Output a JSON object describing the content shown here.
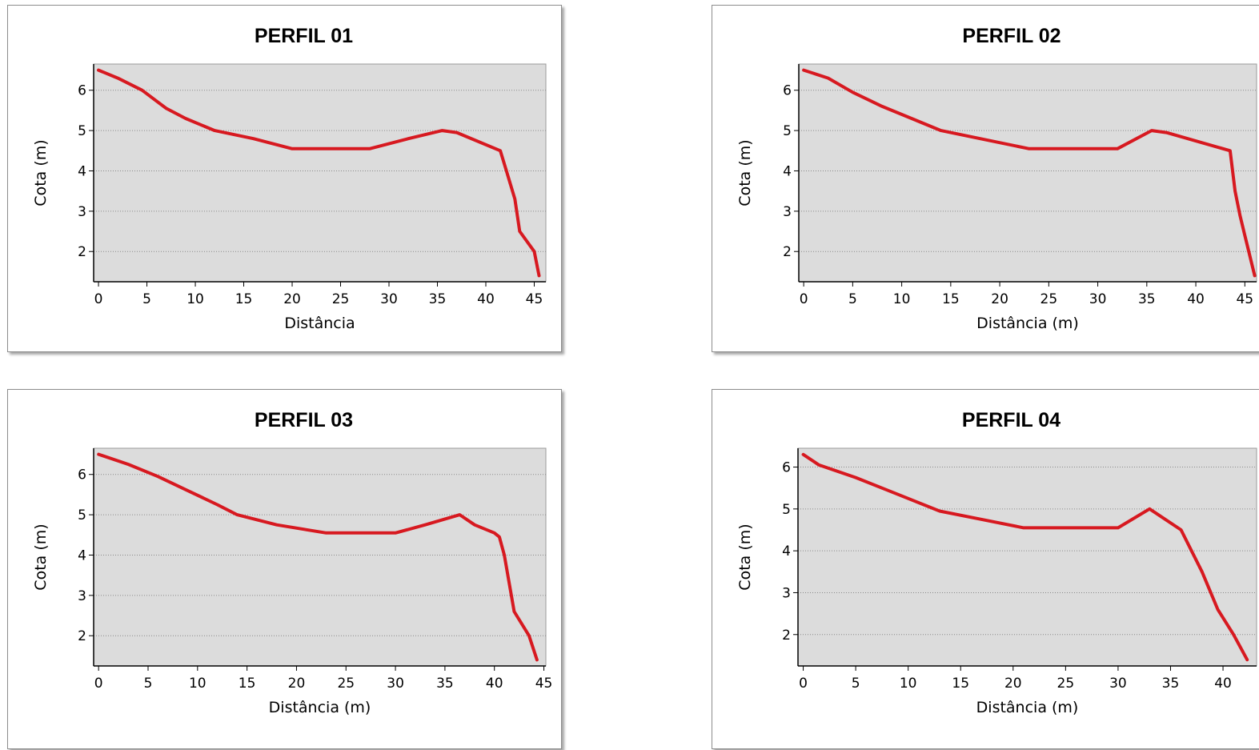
{
  "charts": [
    {
      "title": "PERFIL 01",
      "chart_data": {
        "type": "line",
        "title": "PERFIL 01",
        "xlabel": "Distância",
        "ylabel": "Cota (m)",
        "xlim": [
          -0.5,
          46.2
        ],
        "ylim": [
          1.25,
          6.65
        ],
        "xticks": [
          0,
          5,
          10,
          15,
          20,
          25,
          30,
          35,
          40,
          45
        ],
        "yticks": [
          2,
          3,
          4,
          5,
          6
        ],
        "grid": "horizontal-dotted",
        "series": [
          {
            "color": "#d71920",
            "x": [
              0,
              2,
              4.5,
              7,
              9,
              12,
              16,
              20,
              28,
              32,
              35.5,
              37,
              41.5,
              42,
              43,
              43.5,
              45,
              45.5
            ],
            "y": [
              6.5,
              6.3,
              6.0,
              5.55,
              5.3,
              5.0,
              4.8,
              4.55,
              4.55,
              4.8,
              5.0,
              4.95,
              4.5,
              4.1,
              3.3,
              2.5,
              2.0,
              1.4
            ]
          }
        ]
      }
    },
    {
      "title": "PERFIL 02",
      "chart_data": {
        "type": "line",
        "title": "PERFIL 02",
        "xlabel": "Distância (m)",
        "ylabel": "Cota (m)",
        "xlim": [
          -0.5,
          46.2
        ],
        "ylim": [
          1.25,
          6.65
        ],
        "xticks": [
          0,
          5,
          10,
          15,
          20,
          25,
          30,
          35,
          40,
          45
        ],
        "yticks": [
          2,
          3,
          4,
          5,
          6
        ],
        "grid": "horizontal-dotted",
        "series": [
          {
            "color": "#d71920",
            "x": [
              0,
              2.5,
              5,
              8,
              11,
              14,
              18,
              23,
              32,
              35.5,
              37,
              43.5,
              44,
              44.5,
              45,
              46
            ],
            "y": [
              6.5,
              6.3,
              5.95,
              5.6,
              5.3,
              5.0,
              4.8,
              4.55,
              4.55,
              5.0,
              4.95,
              4.5,
              3.5,
              2.9,
              2.4,
              1.4
            ]
          }
        ]
      }
    },
    {
      "title": "PERFIL 03",
      "chart_data": {
        "type": "line",
        "title": "PERFIL 03",
        "xlabel": "Distância (m)",
        "ylabel": "Cota (m)",
        "xlim": [
          -0.5,
          45.2
        ],
        "ylim": [
          1.25,
          6.65
        ],
        "xticks": [
          0,
          5,
          10,
          15,
          20,
          25,
          30,
          35,
          40,
          45
        ],
        "yticks": [
          2,
          3,
          4,
          5,
          6
        ],
        "grid": "horizontal-dotted",
        "series": [
          {
            "color": "#d71920",
            "x": [
              0,
              3,
              6,
              9,
              12,
              14,
              18,
              23,
              30,
              33,
              36.5,
              38,
              40,
              40.5,
              41,
              42,
              43.5,
              44.3
            ],
            "y": [
              6.5,
              6.25,
              5.95,
              5.6,
              5.25,
              5.0,
              4.75,
              4.55,
              4.55,
              4.75,
              5.0,
              4.75,
              4.55,
              4.45,
              4.0,
              2.6,
              2.0,
              1.4
            ]
          }
        ]
      }
    },
    {
      "title": "PERFIL 04",
      "chart_data": {
        "type": "line",
        "title": "PERFIL 04",
        "xlabel": "Distância (m)",
        "ylabel": "Cota (m)",
        "xlim": [
          -0.5,
          43.2
        ],
        "ylim": [
          1.25,
          6.45
        ],
        "xticks": [
          0,
          5,
          10,
          15,
          20,
          25,
          30,
          35,
          40
        ],
        "yticks": [
          2,
          3,
          4,
          5,
          6
        ],
        "grid": "horizontal-dotted",
        "series": [
          {
            "color": "#d71920",
            "x": [
              0,
              1.5,
              5,
              8,
              13,
              17,
              21,
              30,
              33,
              36,
              38,
              39.5,
              41,
              42.3
            ],
            "y": [
              6.3,
              6.05,
              5.75,
              5.45,
              4.95,
              4.75,
              4.55,
              4.55,
              5.0,
              4.5,
              3.5,
              2.6,
              2.0,
              1.4
            ]
          }
        ]
      }
    }
  ],
  "colors": {
    "plot_background": "#dcdcdc",
    "line": "#d71920",
    "grid": "#8a8a8a"
  }
}
